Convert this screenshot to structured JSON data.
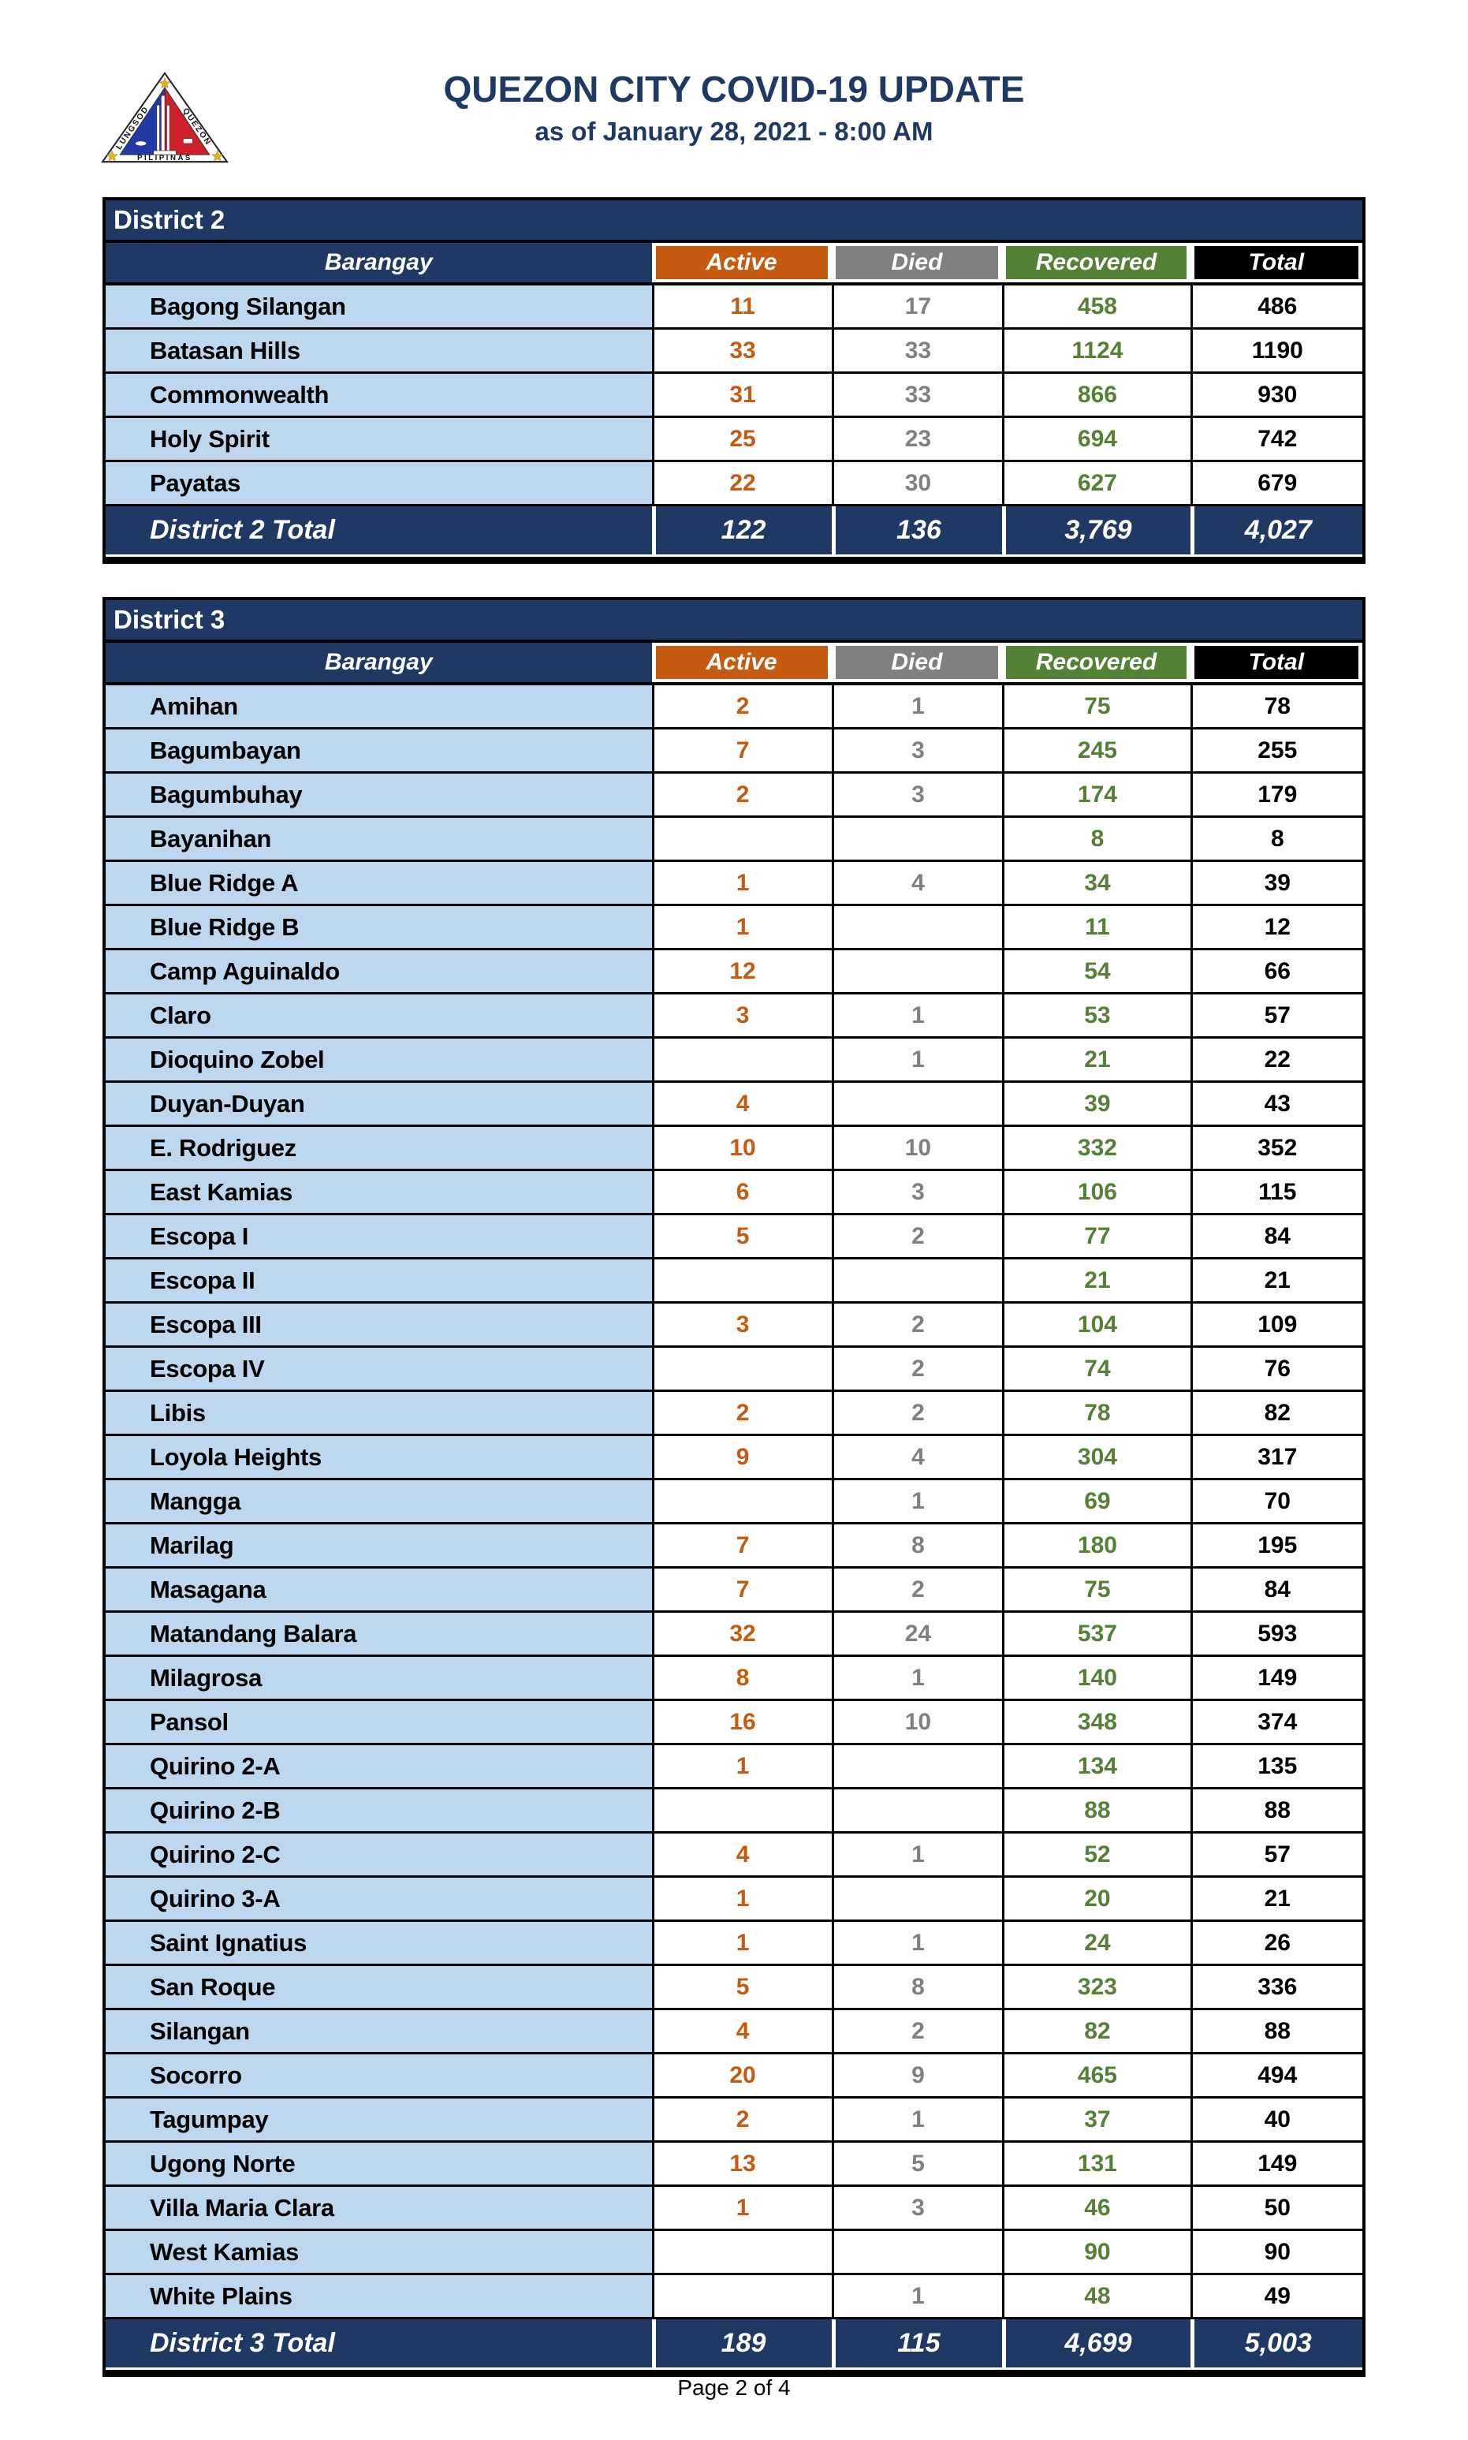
{
  "header": {
    "title": "QUEZON CITY COVID-19 UPDATE",
    "subtitle": "as of January 28, 2021 - 8:00 AM",
    "logo": {
      "left_text": "LUNGSOD",
      "right_text": "QUEZON",
      "banner": "PILIPINAS"
    }
  },
  "columns": [
    "Barangay",
    "Active",
    "Died",
    "Recovered",
    "Total"
  ],
  "colors": {
    "navy": "#1F3864",
    "navy_text": "#203864",
    "orange": "#C55A11",
    "gray": "#808080",
    "green": "#538135",
    "black": "#000000",
    "light_blue": "#BDD7EE",
    "white": "#FFFFFF",
    "star_yellow": "#E8B500",
    "seal_blue": "#2138A7",
    "seal_red": "#CE2029"
  },
  "tables": [
    {
      "district": "District 2",
      "rows": [
        [
          "Bagong Silangan",
          "11",
          "17",
          "458",
          "486"
        ],
        [
          "Batasan Hills",
          "33",
          "33",
          "1124",
          "1190"
        ],
        [
          "Commonwealth",
          "31",
          "33",
          "866",
          "930"
        ],
        [
          "Holy Spirit",
          "25",
          "23",
          "694",
          "742"
        ],
        [
          "Payatas",
          "22",
          "30",
          "627",
          "679"
        ]
      ],
      "total": [
        "District 2 Total",
        "122",
        "136",
        "3,769",
        "4,027"
      ]
    },
    {
      "district": "District 3",
      "rows": [
        [
          "Amihan",
          "2",
          "1",
          "75",
          "78"
        ],
        [
          "Bagumbayan",
          "7",
          "3",
          "245",
          "255"
        ],
        [
          "Bagumbuhay",
          "2",
          "3",
          "174",
          "179"
        ],
        [
          "Bayanihan",
          "",
          "",
          "8",
          "8"
        ],
        [
          "Blue Ridge A",
          "1",
          "4",
          "34",
          "39"
        ],
        [
          "Blue Ridge B",
          "1",
          "",
          "11",
          "12"
        ],
        [
          "Camp Aguinaldo",
          "12",
          "",
          "54",
          "66"
        ],
        [
          "Claro",
          "3",
          "1",
          "53",
          "57"
        ],
        [
          "Dioquino Zobel",
          "",
          "1",
          "21",
          "22"
        ],
        [
          "Duyan-Duyan",
          "4",
          "",
          "39",
          "43"
        ],
        [
          "E. Rodriguez",
          "10",
          "10",
          "332",
          "352"
        ],
        [
          "East Kamias",
          "6",
          "3",
          "106",
          "115"
        ],
        [
          "Escopa I",
          "5",
          "2",
          "77",
          "84"
        ],
        [
          "Escopa II",
          "",
          "",
          "21",
          "21"
        ],
        [
          "Escopa III",
          "3",
          "2",
          "104",
          "109"
        ],
        [
          "Escopa IV",
          "",
          "2",
          "74",
          "76"
        ],
        [
          "Libis",
          "2",
          "2",
          "78",
          "82"
        ],
        [
          "Loyola Heights",
          "9",
          "4",
          "304",
          "317"
        ],
        [
          "Mangga",
          "",
          "1",
          "69",
          "70"
        ],
        [
          "Marilag",
          "7",
          "8",
          "180",
          "195"
        ],
        [
          "Masagana",
          "7",
          "2",
          "75",
          "84"
        ],
        [
          "Matandang Balara",
          "32",
          "24",
          "537",
          "593"
        ],
        [
          "Milagrosa",
          "8",
          "1",
          "140",
          "149"
        ],
        [
          "Pansol",
          "16",
          "10",
          "348",
          "374"
        ],
        [
          "Quirino 2-A",
          "1",
          "",
          "134",
          "135"
        ],
        [
          "Quirino 2-B",
          "",
          "",
          "88",
          "88"
        ],
        [
          "Quirino 2-C",
          "4",
          "1",
          "52",
          "57"
        ],
        [
          "Quirino 3-A",
          "1",
          "",
          "20",
          "21"
        ],
        [
          "Saint Ignatius",
          "1",
          "1",
          "24",
          "26"
        ],
        [
          "San Roque",
          "5",
          "8",
          "323",
          "336"
        ],
        [
          "Silangan",
          "4",
          "2",
          "82",
          "88"
        ],
        [
          "Socorro",
          "20",
          "9",
          "465",
          "494"
        ],
        [
          "Tagumpay",
          "2",
          "1",
          "37",
          "40"
        ],
        [
          "Ugong Norte",
          "13",
          "5",
          "131",
          "149"
        ],
        [
          "Villa Maria Clara",
          "1",
          "3",
          "46",
          "50"
        ],
        [
          "West Kamias",
          "",
          "",
          "90",
          "90"
        ],
        [
          "White Plains",
          "",
          "1",
          "48",
          "49"
        ]
      ],
      "total": [
        "District 3 Total",
        "189",
        "115",
        "4,699",
        "5,003"
      ]
    }
  ],
  "footer": {
    "page_label": "Page 2 of 4"
  }
}
